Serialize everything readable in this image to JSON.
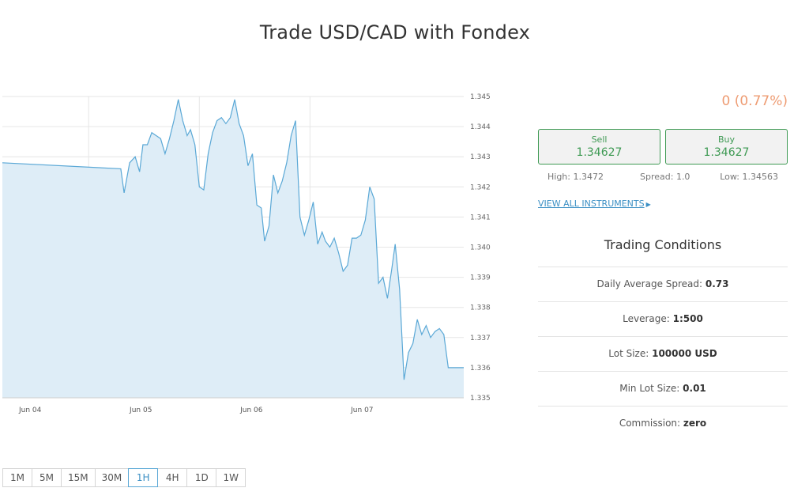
{
  "page": {
    "title": "Trade USD/CAD with Fondex"
  },
  "quote": {
    "change": "0 (0.77%)",
    "sell_label": "Sell",
    "sell_price": "1.34627",
    "buy_label": "Buy",
    "buy_price": "1.34627",
    "high": "High: 1.3472",
    "spread": "Spread: 1.0",
    "low": "Low: 1.34563",
    "view_all": "VIEW ALL INSTRUMENTS"
  },
  "conditions": {
    "title": "Trading Conditions",
    "rows": [
      {
        "label": "Daily Average Spread: ",
        "value": "0.73"
      },
      {
        "label": "Leverage: ",
        "value": "1:500"
      },
      {
        "label": "Lot Size: ",
        "value": "100000 USD"
      },
      {
        "label": "Min Lot Size: ",
        "value": "0.01"
      },
      {
        "label": "Commission: ",
        "value": "zero"
      }
    ]
  },
  "timeframes": [
    "1M",
    "5M",
    "15M",
    "30M",
    "1H",
    "4H",
    "1D",
    "1W"
  ],
  "active_timeframe": "1H",
  "colors": {
    "line": "#5aa8d6",
    "fill": "#deedf7",
    "accent_green": "#3f9a54",
    "change": "#ee9c73",
    "link": "#3b8fc4"
  },
  "chart_data": {
    "type": "area",
    "title": "",
    "xlabel": "",
    "ylabel": "",
    "ylim": [
      1.335,
      1.345
    ],
    "xlim": [
      0,
      4.17
    ],
    "y_ticks": [
      "1.345",
      "1.344",
      "1.343",
      "1.342",
      "1.341",
      "1.340",
      "1.339",
      "1.338",
      "1.337",
      "1.336",
      "1.335"
    ],
    "x_ticks": [
      {
        "label": "Jun 04",
        "x": 0.25
      },
      {
        "label": "Jun 05",
        "x": 1.25
      },
      {
        "label": "Jun 06",
        "x": 2.25
      },
      {
        "label": "Jun 07",
        "x": 3.25
      }
    ],
    "grid": true,
    "series": [
      {
        "x": [
          0,
          1.07,
          1.1,
          1.15,
          1.2,
          1.24,
          1.27,
          1.31,
          1.35,
          1.39,
          1.43,
          1.47,
          1.51,
          1.55,
          1.59,
          1.63,
          1.67,
          1.7,
          1.74,
          1.78,
          1.82,
          1.86,
          1.9,
          1.94,
          1.98,
          2.02,
          2.06,
          2.1,
          2.14,
          2.18,
          2.22,
          2.26,
          2.3,
          2.34,
          2.37,
          2.41,
          2.45,
          2.49,
          2.53,
          2.57,
          2.61,
          2.65,
          2.69,
          2.73,
          2.77,
          2.81,
          2.85,
          2.89,
          2.92,
          2.96,
          3.0,
          3.04,
          3.08,
          3.12,
          3.16,
          3.2,
          3.24,
          3.28,
          3.32,
          3.36,
          3.4,
          3.44,
          3.48,
          3.52,
          3.55,
          3.59,
          3.63,
          3.67,
          3.71,
          3.75,
          3.79,
          3.83,
          3.87,
          3.91,
          3.95,
          3.99,
          4.03,
          4.07,
          4.11,
          4.15,
          4.17
        ],
        "y": [
          1.3428,
          1.3426,
          1.3418,
          1.3428,
          1.343,
          1.3425,
          1.3434,
          1.3434,
          1.3438,
          1.3437,
          1.3436,
          1.3431,
          1.3436,
          1.3442,
          1.3449,
          1.3442,
          1.3437,
          1.3439,
          1.3434,
          1.342,
          1.3419,
          1.3431,
          1.3438,
          1.3442,
          1.3443,
          1.3441,
          1.3443,
          1.3449,
          1.3441,
          1.3437,
          1.3427,
          1.3431,
          1.3414,
          1.3413,
          1.3402,
          1.3407,
          1.3424,
          1.3418,
          1.3422,
          1.3428,
          1.3437,
          1.3442,
          1.341,
          1.3404,
          1.3409,
          1.3415,
          1.3401,
          1.3405,
          1.3402,
          1.34,
          1.3403,
          1.3398,
          1.3392,
          1.3394,
          1.3403,
          1.3403,
          1.3404,
          1.3409,
          1.342,
          1.3416,
          1.3388,
          1.339,
          1.3383,
          1.3393,
          1.3401,
          1.3386,
          1.3356,
          1.3365,
          1.3368,
          1.3376,
          1.3371,
          1.3374,
          1.337,
          1.3372,
          1.3373,
          1.3371,
          1.336,
          1.336,
          1.336,
          1.336,
          1.336
        ]
      }
    ]
  }
}
